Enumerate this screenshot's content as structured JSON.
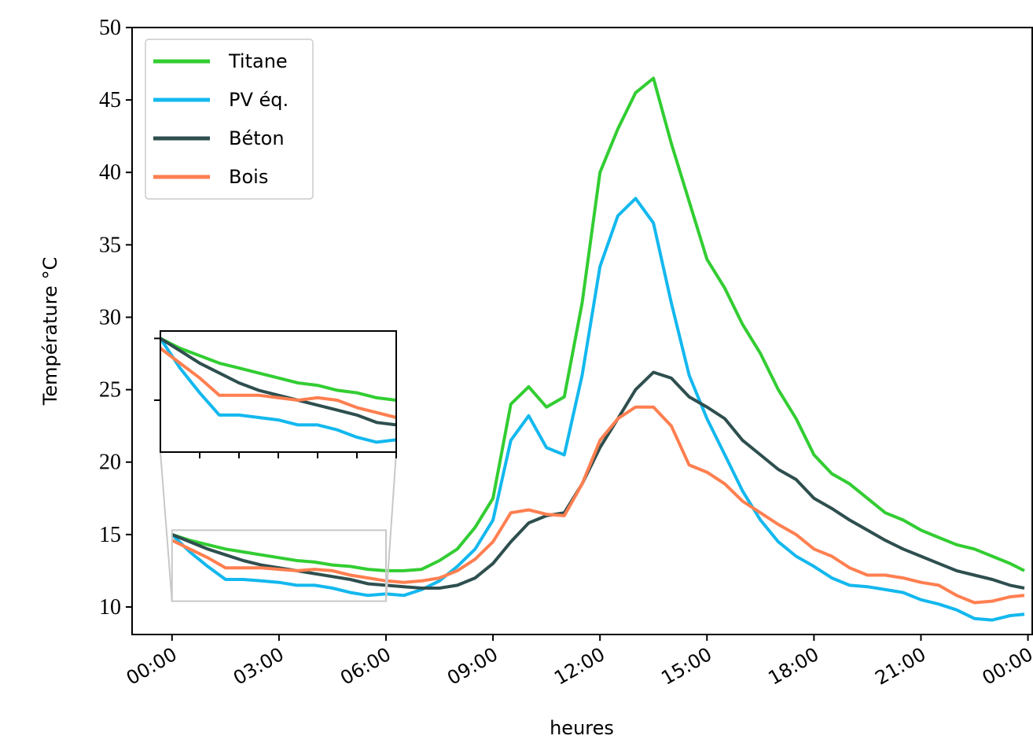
{
  "chart_data": {
    "type": "line",
    "x_label": "heures",
    "y_label": "Température °C",
    "x": [
      0,
      0.5,
      1,
      1.5,
      2,
      2.5,
      3,
      3.5,
      4,
      4.5,
      5,
      5.5,
      6,
      6.5,
      7,
      7.5,
      8,
      8.5,
      9,
      9.5,
      10,
      10.5,
      11,
      11.5,
      12,
      12.5,
      13,
      13.5,
      14,
      14.5,
      15,
      15.5,
      16,
      16.5,
      17,
      17.5,
      18,
      18.5,
      19,
      19.5,
      20,
      20.5,
      21,
      21.5,
      22,
      22.5,
      23,
      23.5,
      23.9
    ],
    "series": [
      {
        "name": "Titane",
        "color": "#32cd32",
        "values": [
          15.0,
          14.6,
          14.3,
          14.0,
          13.8,
          13.6,
          13.4,
          13.2,
          13.1,
          12.9,
          12.8,
          12.6,
          12.5,
          12.5,
          12.6,
          13.2,
          14.0,
          15.5,
          17.5,
          24.0,
          25.2,
          23.8,
          24.5,
          31.0,
          40.0,
          43.0,
          45.5,
          46.5,
          42.0,
          38.0,
          34.0,
          32.0,
          29.5,
          27.5,
          25.0,
          23.0,
          20.5,
          19.2,
          18.5,
          17.5,
          16.5,
          16.0,
          15.3,
          14.8,
          14.3,
          14.0,
          13.5,
          13.0,
          12.5
        ]
      },
      {
        "name": "PV éq.",
        "color": "#13b8ee",
        "values": [
          15.0,
          13.8,
          12.8,
          11.9,
          11.9,
          11.8,
          11.7,
          11.5,
          11.5,
          11.3,
          11.0,
          10.8,
          10.9,
          10.8,
          11.2,
          11.8,
          12.8,
          14.0,
          16.0,
          21.5,
          23.2,
          21.0,
          20.5,
          26.0,
          33.5,
          37.0,
          38.2,
          36.5,
          31.0,
          26.0,
          23.0,
          20.5,
          18.0,
          16.0,
          14.5,
          13.5,
          12.8,
          12.0,
          11.5,
          11.4,
          11.2,
          11.0,
          10.5,
          10.2,
          9.8,
          9.2,
          9.1,
          9.4,
          9.5
        ]
      },
      {
        "name": "Béton",
        "color": "#2f4f4f",
        "values": [
          15.0,
          14.5,
          14.0,
          13.6,
          13.2,
          12.9,
          12.7,
          12.5,
          12.3,
          12.1,
          11.9,
          11.6,
          11.5,
          11.4,
          11.3,
          11.3,
          11.5,
          12.0,
          13.0,
          14.5,
          15.8,
          16.3,
          16.5,
          18.5,
          21.0,
          23.0,
          25.0,
          26.2,
          25.8,
          24.5,
          23.8,
          23.0,
          21.5,
          20.5,
          19.5,
          18.8,
          17.5,
          16.8,
          16.0,
          15.3,
          14.6,
          14.0,
          13.5,
          13.0,
          12.5,
          12.2,
          11.9,
          11.5,
          11.3
        ]
      },
      {
        "name": "Bois",
        "color": "#ff7f50",
        "values": [
          14.6,
          14.0,
          13.4,
          12.7,
          12.7,
          12.7,
          12.6,
          12.5,
          12.6,
          12.5,
          12.2,
          12.0,
          11.8,
          11.7,
          11.8,
          12.0,
          12.5,
          13.3,
          14.5,
          16.5,
          16.7,
          16.4,
          16.3,
          18.5,
          21.5,
          23.0,
          23.8,
          23.8,
          22.5,
          19.8,
          19.3,
          18.5,
          17.3,
          16.5,
          15.7,
          15.0,
          14.0,
          13.5,
          12.7,
          12.2,
          12.2,
          12.0,
          11.7,
          11.5,
          10.8,
          10.3,
          10.4,
          10.7,
          10.8
        ]
      }
    ],
    "xlim": [
      -1.12,
      24.12
    ],
    "xticks": [
      {
        "value": 0,
        "label": "00:00"
      },
      {
        "value": 3,
        "label": "03:00"
      },
      {
        "value": 6,
        "label": "06:00"
      },
      {
        "value": 9,
        "label": "09:00"
      },
      {
        "value": 12,
        "label": "12:00"
      },
      {
        "value": 15,
        "label": "15:00"
      },
      {
        "value": 18,
        "label": "18:00"
      },
      {
        "value": 21,
        "label": "21:00"
      },
      {
        "value": 24,
        "label": "00:00"
      }
    ],
    "ylim": [
      8.1,
      50
    ],
    "yticks": [
      10,
      15,
      20,
      25,
      30,
      35,
      40,
      45,
      50
    ],
    "legend": "upper-left",
    "inset": {
      "xlim": [
        0,
        6
      ],
      "ylim": [
        10.4,
        15.3
      ],
      "xticks": [
        1,
        2,
        3,
        4,
        5,
        6
      ],
      "yticks": [
        12.5,
        15
      ]
    }
  }
}
